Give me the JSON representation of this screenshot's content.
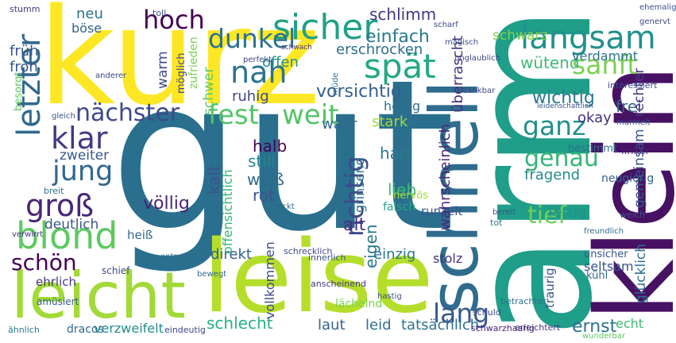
{
  "words": [
    "gut",
    "kurz",
    "leise",
    "arm",
    "klein",
    "schnell",
    "leicht",
    "blond",
    "sicher",
    "dunkel",
    "hoch",
    "langsam",
    "sanft",
    "spät",
    "nah",
    "nächster",
    "fest",
    "weit",
    "letzter",
    "klar",
    "jung",
    "groß",
    "schön",
    "ganz",
    "genau",
    "tief",
    "lang",
    "ernst",
    "richtig",
    "einfach",
    "schlimm",
    "erschrocken",
    "vorsichtig",
    "wichtig",
    "frei",
    "wütend",
    "schwarz",
    "verdammt",
    "neu",
    "böse",
    "früh",
    "froh",
    "ruhig",
    "offen",
    "wahr",
    "heftig",
    "stark",
    "okay",
    "halb",
    "still",
    "weiß",
    "rot",
    "hart",
    "fragend",
    "lieb",
    "alt",
    "völlig",
    "deutlich",
    "zweiter",
    "fertig",
    "direkt",
    "einzig",
    "stolz",
    "seltsam",
    "heiß",
    "ehrlich",
    "schlecht",
    "laut",
    "leid",
    "tatsächlich",
    "verzweifelt",
    "dracos",
    "lächelnd",
    "echt",
    "runzelt",
    "falsch",
    "neugierig",
    "bestimmt",
    "linker",
    "unsicher",
    "kalt",
    "schwer",
    "warm",
    "zufrieden",
    "wahrscheinlich",
    "überrascht",
    "gemeinsam",
    "rechter",
    "glücklich",
    "grinsend",
    "eigen",
    "vollkommen",
    "offensichtlich",
    "möglich",
    "besorgt",
    "traurig",
    "nervös",
    "toll",
    "schwach",
    "perfekt",
    "unglaublich",
    "magisch",
    "scharf",
    "kühl",
    "betrachtet",
    "erleichtert",
    "schwarzhaarig",
    "wunderbar",
    "leidenschaftlich",
    "interessiert",
    "murmelt",
    "gleich",
    "amüsiert",
    "schief",
    "bewegt",
    "innerlich",
    "anscheinend",
    "schrecklich",
    "entsetzt",
    "nackt",
    "tot",
    "bereit",
    "freundlich",
    "weich",
    "breit",
    "verwirrt",
    "ähnlich",
    "eindeutig",
    "hastig",
    "schuld",
    "stumm",
    "anderer",
    "ehemalig",
    "genervt",
    "dankbar",
    "müde"
  ]
}
